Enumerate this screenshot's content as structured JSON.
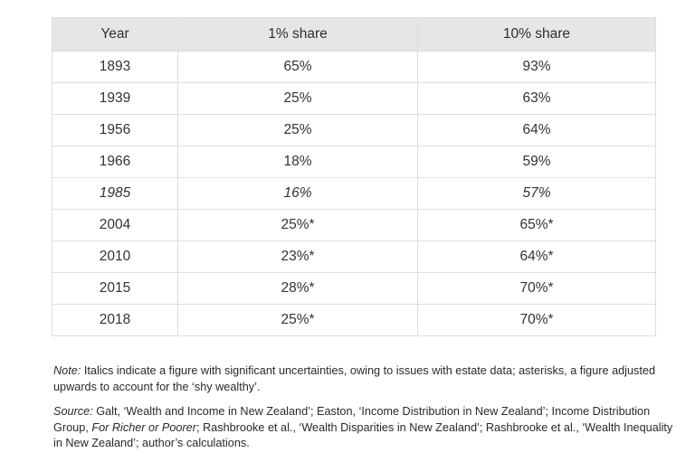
{
  "table": {
    "headers": [
      "Year",
      "1% share",
      "10% share"
    ],
    "rows": [
      {
        "year": "1893",
        "top1": "65%",
        "top10": "93%",
        "italic": false
      },
      {
        "year": "1939",
        "top1": "25%",
        "top10": "63%",
        "italic": false
      },
      {
        "year": "1956",
        "top1": "25%",
        "top10": "64%",
        "italic": false
      },
      {
        "year": "1966",
        "top1": "18%",
        "top10": "59%",
        "italic": false
      },
      {
        "year": "1985",
        "top1": "16%",
        "top10": "57%",
        "italic": true
      },
      {
        "year": "2004",
        "top1": "25%*",
        "top10": "65%*",
        "italic": false
      },
      {
        "year": "2010",
        "top1": "23%*",
        "top10": "64%*",
        "italic": false
      },
      {
        "year": "2015",
        "top1": "28%*",
        "top10": "70%*",
        "italic": false
      },
      {
        "year": "2018",
        "top1": "25%*",
        "top10": "70%*",
        "italic": false
      }
    ]
  },
  "note": {
    "label": "Note:",
    "text": " Italics indicate a figure with significant uncertainties, owing to issues with estate data; asterisks, a figure adjusted upwards to account for the ‘shy wealthy’."
  },
  "source": {
    "label": "Source:",
    "part1": " Galt, ‘Wealth and Income in New Zealand’; Easton, ‘Income Distribution in New Zealand’; Income Distribution Group, ",
    "italic_title": "For Richer or Poorer",
    "part2": "; Rashbrooke et al., ‘Wealth Disparities in New Zealand’; Rashbrooke et al., ‘Wealth Inequality in New Zealand’; author’s calculations."
  },
  "colors": {
    "header_bg": "#e6e6e7",
    "border": "#dedede",
    "text": "#333333"
  }
}
